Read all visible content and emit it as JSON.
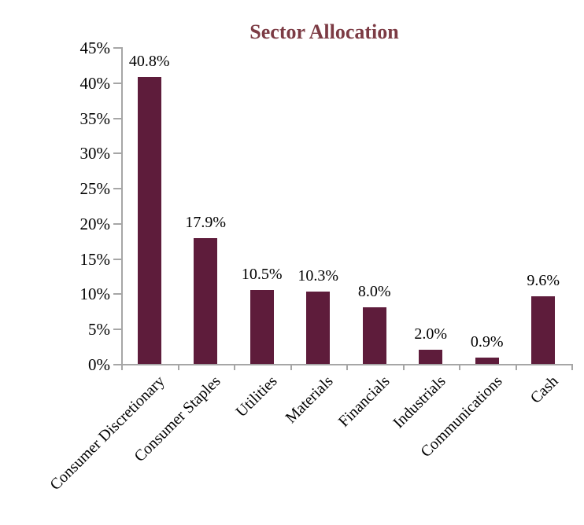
{
  "chart_data": {
    "type": "bar",
    "title": "Sector Allocation",
    "categories": [
      "Consumer Discretionary",
      "Consumer Staples",
      "Utilities",
      "Materials",
      "Financials",
      "Industrials",
      "Communications",
      "Cash"
    ],
    "values": [
      40.8,
      17.9,
      10.5,
      10.3,
      8.0,
      2.0,
      0.9,
      9.6
    ],
    "value_labels": [
      "40.8%",
      "17.9%",
      "10.5%",
      "10.3%",
      "8.0%",
      "2.0%",
      "0.9%",
      "9.6%"
    ],
    "xlabel": "",
    "ylabel": "",
    "ylim": [
      0,
      45
    ],
    "ytick_step": 5,
    "ytick_labels": [
      "0%",
      "5%",
      "10%",
      "15%",
      "20%",
      "25%",
      "30%",
      "35%",
      "40%",
      "45%"
    ],
    "grid": false,
    "legend_position": "none",
    "x_label_rotation_deg": 45,
    "colors": {
      "bar": "#5e1c3b",
      "title": "#7c3b44",
      "axis": "#a6a6a6",
      "text": "#000000",
      "background": "#ffffff"
    }
  }
}
